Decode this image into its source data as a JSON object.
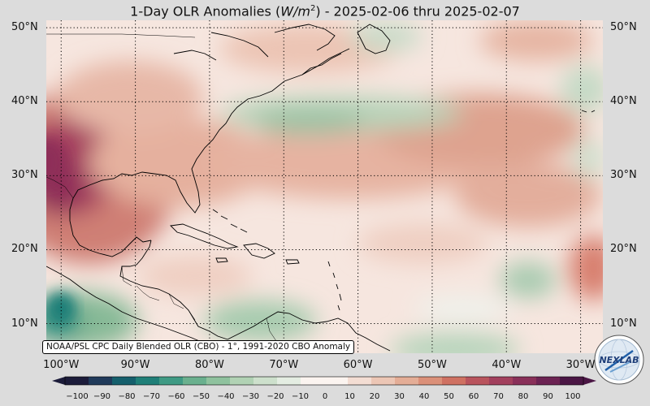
{
  "title": {
    "prefix": "1-Day OLR Anomalies (",
    "unit_base": "W/m",
    "unit_exp": "2",
    "suffix": ") - 2025-02-06 thru 2025-02-07"
  },
  "credit": "NOAA/PSL CPC Daily Blended OLR (CBO) - 1°, 1991-2020 CBO Anomaly",
  "logo": {
    "text": "NEXLAB",
    "icon": "nexlab-globe-logo"
  },
  "map": {
    "projection": "equirectangular",
    "lon_range": [
      -102,
      -27
    ],
    "lat_range": [
      6,
      51
    ],
    "gridlines": "dotted",
    "lat_labels": [
      "50°N",
      "40°N",
      "30°N",
      "20°N",
      "10°N"
    ],
    "lat_values": [
      50,
      40,
      30,
      20,
      10
    ],
    "lon_labels": [
      "100°W",
      "90°W",
      "80°W",
      "70°W",
      "60°W",
      "50°W",
      "40°W",
      "30°W"
    ],
    "lon_values": [
      -100,
      -90,
      -80,
      -70,
      -60,
      -50,
      -40,
      -30
    ]
  },
  "colorbar": {
    "ticks": [
      "−100",
      "−90",
      "−80",
      "−70",
      "−60",
      "−50",
      "−40",
      "−30",
      "−20",
      "−10",
      "0",
      "10",
      "20",
      "30",
      "40",
      "50",
      "60",
      "70",
      "80",
      "90",
      "100"
    ],
    "colors_neg": [
      "#1c1c3a",
      "#203a5a",
      "#155f6c",
      "#1f7f78",
      "#3f9a84",
      "#6ab08e",
      "#8fc29e",
      "#b1d2b4",
      "#cde0cc",
      "#e4ede2"
    ],
    "color_zero": "#fbf4f0",
    "colors_pos": [
      "#f3ddd3",
      "#ecc6b5",
      "#e4ad96",
      "#db9079",
      "#cf7162",
      "#b9545d",
      "#a2405d",
      "#893059",
      "#6c2353",
      "#4a1644"
    ]
  }
}
